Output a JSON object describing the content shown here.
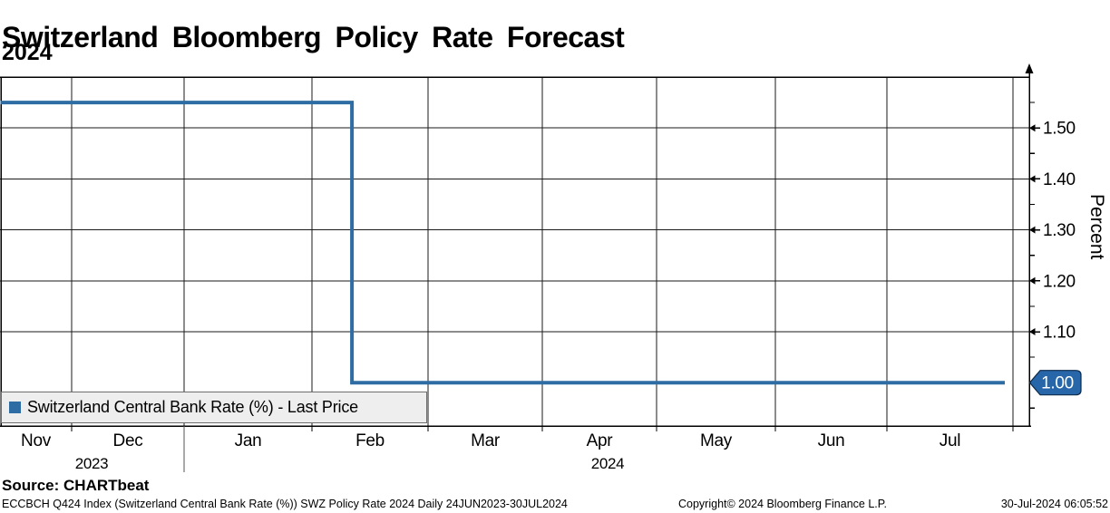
{
  "header": {
    "title": "Switzerland Bloomberg Policy Rate Forecast",
    "subtitle": "2024"
  },
  "chart_data": {
    "type": "line",
    "style": "step",
    "title": "Switzerland Bloomberg Policy Rate Forecast 2024",
    "xlabel": "",
    "ylabel": "Percent",
    "ylim": [
      0.915,
      1.6
    ],
    "grid": true,
    "legend_position": "bottom-left",
    "x_month_labels": [
      "Nov",
      "Dec",
      "Jan",
      "Feb",
      "Mar",
      "Apr",
      "May",
      "Jun",
      "Jul"
    ],
    "x_year_labels": [
      "2023",
      "2024"
    ],
    "y_major_tick_labels": [
      "1.50",
      "1.40",
      "1.30",
      "1.20",
      "1.10"
    ],
    "y_minor_tick_values": [
      1.55,
      1.45,
      1.35,
      1.25,
      1.15,
      1.05,
      0.95
    ],
    "series": [
      {
        "name": "Switzerland Central Bank Rate (%) - Last Price",
        "color": "#2e6da4",
        "points": [
          {
            "date": "2023-11-12",
            "value": 1.55
          },
          {
            "date": "2024-02-11",
            "value": 1.55
          },
          {
            "date": "2024-02-11",
            "value": 1.0
          },
          {
            "date": "2024-07-30",
            "value": 1.0
          }
        ]
      }
    ],
    "last_price_badge": {
      "value": "1.00",
      "fill": "#2766a8",
      "border": "#0d2b4d",
      "text_color": "#ffffff"
    }
  },
  "legend": {
    "label": "Switzerland Central Bank Rate (%) - Last Price",
    "marker_color": "#2e6da4"
  },
  "footer": {
    "source": "Source: CHARTbeat",
    "info_left": "ECCBCH Q424 Index (Switzerland Central Bank Rate (%)) SWZ Policy Rate 2024  Daily 24JUN2023-30JUL2024",
    "copyright": "Copyright© 2024 Bloomberg Finance L.P.",
    "timestamp": "30-Jul-2024 06:05:52"
  }
}
